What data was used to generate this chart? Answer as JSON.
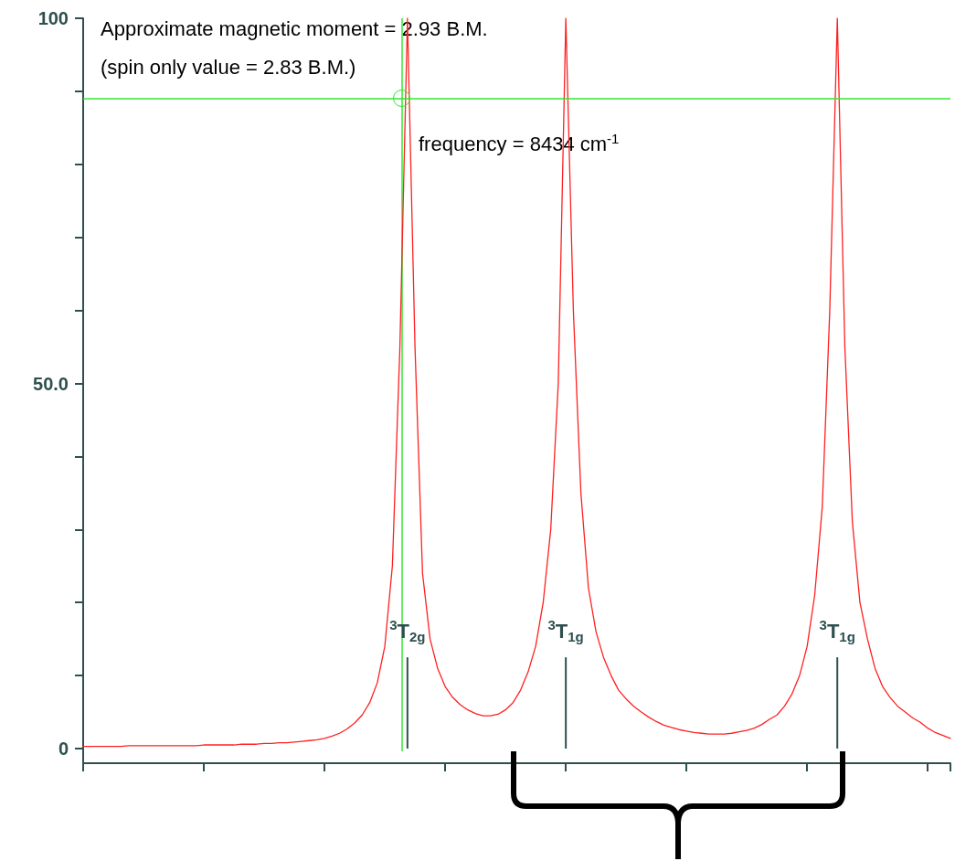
{
  "chart_data": {
    "type": "line",
    "categories": [
      null,
      null,
      null,
      null,
      null,
      null,
      null,
      null,
      null,
      null,
      null,
      null,
      null,
      null,
      null,
      null,
      null,
      null,
      null,
      null,
      null,
      null,
      null,
      null,
      null,
      null,
      null,
      null,
      null,
      null,
      null,
      null,
      null,
      null,
      null,
      null,
      null,
      null,
      null,
      null,
      null,
      null,
      null,
      null,
      null,
      null,
      null,
      null,
      null,
      null,
      null,
      null,
      null,
      null,
      null,
      null,
      null,
      null,
      null,
      null,
      null,
      null,
      null,
      null,
      null,
      null,
      null,
      null,
      null,
      null,
      null,
      null,
      null,
      null,
      null,
      null,
      null,
      null,
      null,
      null,
      null,
      null,
      null,
      null,
      null,
      null,
      null,
      null,
      null,
      null,
      null,
      null,
      null,
      null,
      null,
      null,
      null,
      null,
      null,
      null,
      null,
      null,
      null,
      null,
      null,
      null,
      null,
      null,
      null,
      null,
      null,
      null,
      null,
      null,
      null,
      null
    ],
    "series": [
      {
        "color": "#ff2020",
        "values": [
          0.3,
          0.3,
          0.3,
          0.3,
          0.3,
          0.3,
          0.4,
          0.4,
          0.4,
          0.4,
          0.4,
          0.4,
          0.4,
          0.4,
          0.4,
          0.4,
          0.5,
          0.5,
          0.5,
          0.5,
          0.5,
          0.6,
          0.6,
          0.6,
          0.7,
          0.7,
          0.8,
          0.8,
          0.9,
          1.0,
          1.1,
          1.2,
          1.4,
          1.7,
          2.1,
          2.7,
          3.5,
          4.6,
          6.3,
          9,
          14,
          25,
          55,
          100,
          55,
          24,
          15,
          11,
          8.5,
          7,
          6,
          5.3,
          4.8,
          4.5,
          4.5,
          4.7,
          5.3,
          6.3,
          8,
          10.5,
          14,
          20,
          30,
          50,
          100,
          60,
          35,
          22,
          16,
          12.5,
          10,
          8,
          6.8,
          5.8,
          5,
          4.3,
          3.7,
          3.2,
          2.9,
          2.6,
          2.4,
          2.2,
          2.1,
          2.0,
          2.0,
          2.0,
          2.1,
          2.3,
          2.5,
          2.8,
          3.3,
          4.0,
          4.6,
          5.8,
          7.5,
          10,
          14,
          21,
          33,
          60,
          100,
          55,
          31,
          20,
          15,
          11,
          8.5,
          7,
          5.8,
          5,
          4.2,
          3.6,
          2.8,
          2.2,
          1.8,
          1.4
        ]
      },
      {
        "type": "bar",
        "color": "#2f4f4f",
        "values": [
          null,
          null,
          null,
          null,
          null,
          null,
          null,
          null,
          null,
          null,
          null,
          null,
          null,
          null,
          null,
          null,
          null,
          null,
          null,
          null,
          null,
          null,
          null,
          null,
          null,
          null,
          null,
          null,
          null,
          null,
          null,
          null,
          null,
          null,
          null,
          null,
          null,
          null,
          null,
          null,
          null,
          null,
          null,
          12.5,
          null,
          null,
          null,
          null,
          null,
          null,
          null,
          null,
          null,
          null,
          null,
          null,
          null,
          null,
          null,
          null,
          null,
          null,
          null,
          null,
          12.5,
          null,
          null,
          null,
          null,
          null,
          null,
          null,
          null,
          null,
          null,
          null,
          null,
          null,
          null,
          null,
          null,
          null,
          null,
          null,
          null,
          null,
          null,
          null,
          null,
          null,
          null,
          null,
          null,
          null,
          null,
          null,
          null,
          null,
          null,
          null,
          12.5,
          null,
          null,
          null,
          null,
          null,
          null,
          null,
          null,
          null,
          null,
          null,
          null,
          null,
          null,
          null
        ],
        "value_labels": [
          null,
          null,
          null,
          null,
          null,
          null,
          null,
          null,
          null,
          null,
          null,
          null,
          null,
          null,
          null,
          null,
          null,
          null,
          null,
          null,
          null,
          null,
          null,
          null,
          null,
          null,
          null,
          null,
          null,
          null,
          null,
          null,
          null,
          null,
          null,
          null,
          null,
          null,
          null,
          null,
          null,
          null,
          null,
          "$^{3}$T$_{2g}$",
          null,
          null,
          null,
          null,
          null,
          null,
          null,
          null,
          null,
          null,
          null,
          null,
          null,
          null,
          null,
          null,
          null,
          null,
          null,
          null,
          "$^{3}$T$_{1g}$",
          null,
          null,
          null,
          null,
          null,
          null,
          null,
          null,
          null,
          null,
          null,
          null,
          null,
          null,
          null,
          null,
          null,
          null,
          null,
          null,
          null,
          null,
          null,
          null,
          null,
          null,
          null,
          null,
          null,
          null,
          null,
          null,
          null,
          null,
          null,
          "$^{3}$T$_{1g}$",
          null,
          null,
          null,
          null,
          null,
          null,
          null,
          null,
          null,
          null,
          null,
          null,
          null,
          null,
          null
        ]
      }
    ],
    "ylim": [
      -2,
      100
    ],
    "yticks": [
      0,
      {
        "value": 10,
        "label": null
      },
      {
        "value": 20,
        "label": null
      },
      {
        "value": 30,
        "label": null
      },
      {
        "value": 40,
        "label": null
      },
      {
        "value": 50,
        "label": "50.0"
      },
      {
        "value": 60,
        "label": null
      },
      {
        "value": 70,
        "label": null
      },
      {
        "value": 80,
        "label": null
      },
      {
        "value": 90,
        "label": null
      },
      100
    ],
    "tick_labels": "y",
    "grid": false,
    "line_style": "solid",
    "ref_lines": [
      {
        "axis": "y",
        "value": 89,
        "color": "#33e633"
      }
    ],
    "annotations": [
      "Approximate magnetic moment = 2.93 B.M.",
      "(spin only value = 2.83 B.M.)",
      "frequency = 8434 cm$^{-1}$"
    ]
  }
}
